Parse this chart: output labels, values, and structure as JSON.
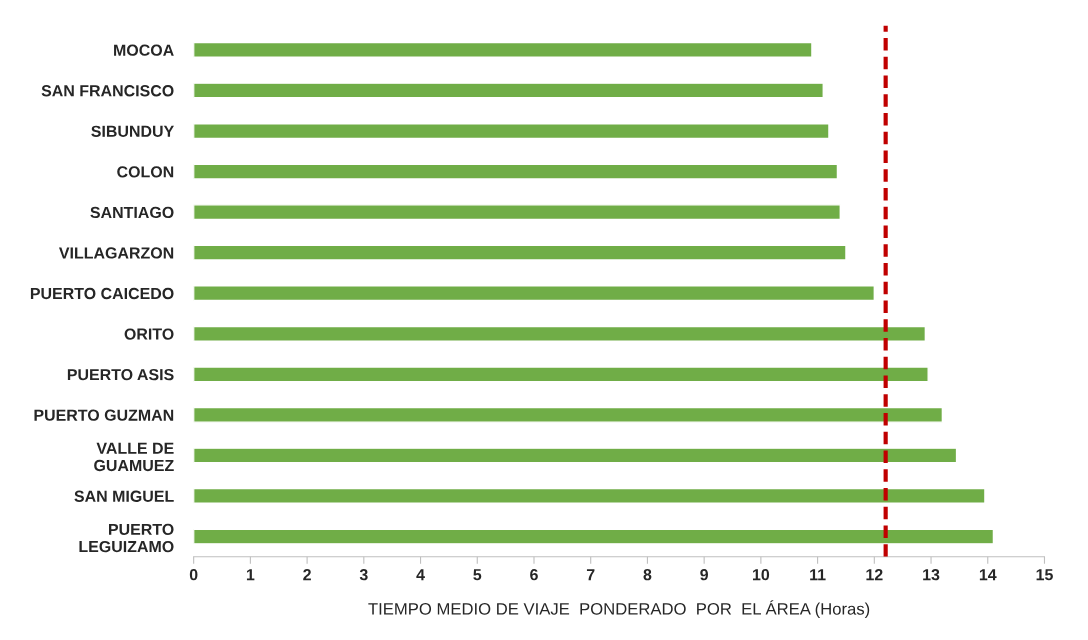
{
  "chart_data": {
    "type": "bar",
    "orientation": "horizontal",
    "xlabel": "TIEMPO MEDIO DE VIAJE  PONDERADO  POR  EL ÁREA (Horas)",
    "categories": [
      "MOCOA",
      "SAN FRANCISCO",
      "SIBUNDUY",
      "COLON",
      "SANTIAGO",
      "VILLAGARZON",
      "PUERTO CAICEDO",
      "ORITO",
      "PUERTO ASIS",
      "PUERTO GUZMAN",
      "VALLE DE\nGUAMUEZ",
      "SAN MIGUEL",
      "PUERTO\nLEGUIZAMO"
    ],
    "values": [
      10.9,
      11.1,
      11.2,
      11.35,
      11.4,
      11.5,
      12.0,
      12.9,
      12.95,
      13.2,
      13.45,
      13.95,
      14.1
    ],
    "color": "#70ad47",
    "xlim": [
      0,
      15
    ],
    "xticks": [
      0,
      1,
      2,
      3,
      4,
      5,
      6,
      7,
      8,
      9,
      10,
      11,
      12,
      13,
      14,
      15
    ],
    "ref_lines": [
      {
        "axis": "x",
        "value": 12.2,
        "color": "#c00000",
        "line_style": "dashed"
      }
    ],
    "grid": false,
    "legend": false
  }
}
